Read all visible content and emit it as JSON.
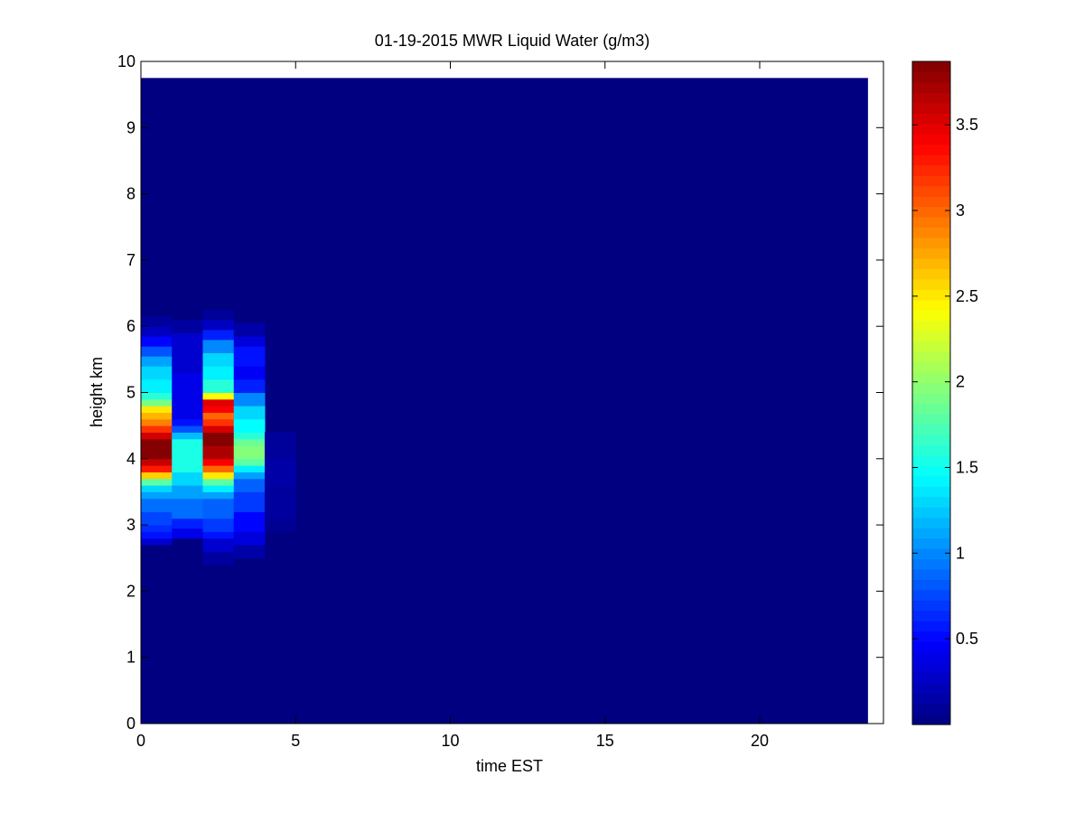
{
  "chart_data": {
    "type": "heatmap",
    "title": "01-19-2015 MWR Liquid Water (g/m3)",
    "xlabel": "time EST",
    "ylabel": "height km",
    "xlim": [
      0,
      24
    ],
    "ylim": [
      0,
      10
    ],
    "xticks": [
      0,
      5,
      10,
      15,
      20
    ],
    "yticks": [
      0,
      1,
      2,
      3,
      4,
      5,
      6,
      7,
      8,
      9,
      10
    ],
    "colorbar": {
      "colormap": "jet",
      "clim": [
        0,
        3.87
      ],
      "ticks": [
        0.5,
        1,
        1.5,
        2,
        2.5,
        3,
        3.5
      ]
    },
    "grid": false,
    "data_extent": {
      "x": [
        0,
        23.5
      ],
      "y": [
        0,
        9.75
      ]
    },
    "background_value": 0,
    "column_width_hours": 1,
    "columns": [
      {
        "x": 0,
        "cells": [
          [
            2.7,
            2.8,
            0.3
          ],
          [
            2.8,
            2.9,
            0.55
          ],
          [
            2.9,
            3.0,
            0.65
          ],
          [
            3.0,
            3.2,
            0.75
          ],
          [
            3.2,
            3.4,
            0.9
          ],
          [
            3.4,
            3.5,
            1.1
          ],
          [
            3.5,
            3.6,
            1.3
          ],
          [
            3.6,
            3.7,
            1.8
          ],
          [
            3.7,
            3.8,
            2.6
          ],
          [
            3.8,
            3.9,
            3.3
          ],
          [
            3.9,
            4.0,
            3.6
          ],
          [
            4.0,
            4.3,
            3.85
          ],
          [
            4.3,
            4.4,
            3.55
          ],
          [
            4.4,
            4.5,
            3.2
          ],
          [
            4.5,
            4.6,
            2.9
          ],
          [
            4.6,
            4.7,
            2.7
          ],
          [
            4.7,
            4.8,
            2.5
          ],
          [
            4.8,
            4.9,
            1.9
          ],
          [
            4.9,
            5.0,
            1.6
          ],
          [
            5.0,
            5.2,
            1.4
          ],
          [
            5.2,
            5.4,
            1.3
          ],
          [
            5.4,
            5.55,
            1.1
          ],
          [
            5.55,
            5.7,
            0.8
          ],
          [
            5.7,
            5.85,
            0.5
          ],
          [
            5.85,
            6.0,
            0.25
          ],
          [
            6.0,
            6.15,
            0.1
          ]
        ]
      },
      {
        "x": 1,
        "cells": [
          [
            2.8,
            2.95,
            0.4
          ],
          [
            2.95,
            3.1,
            0.6
          ],
          [
            3.1,
            3.4,
            0.9
          ],
          [
            3.4,
            3.6,
            1.1
          ],
          [
            3.6,
            3.8,
            1.3
          ],
          [
            3.8,
            4.3,
            1.55
          ],
          [
            4.3,
            4.4,
            1.2
          ],
          [
            4.4,
            4.5,
            0.8
          ],
          [
            4.5,
            4.6,
            0.55
          ],
          [
            4.6,
            5.3,
            0.4
          ],
          [
            5.3,
            5.9,
            0.3
          ],
          [
            5.9,
            6.1,
            0.12
          ]
        ]
      },
      {
        "x": 2,
        "cells": [
          [
            2.4,
            2.6,
            0.12
          ],
          [
            2.6,
            2.8,
            0.3
          ],
          [
            2.8,
            2.9,
            0.55
          ],
          [
            2.9,
            3.1,
            0.7
          ],
          [
            3.1,
            3.4,
            0.85
          ],
          [
            3.4,
            3.5,
            1.1
          ],
          [
            3.5,
            3.6,
            1.4
          ],
          [
            3.6,
            3.7,
            1.8
          ],
          [
            3.7,
            3.8,
            2.5
          ],
          [
            3.8,
            3.9,
            3.0
          ],
          [
            3.9,
            4.0,
            3.4
          ],
          [
            4.0,
            4.2,
            3.7
          ],
          [
            4.2,
            4.4,
            3.85
          ],
          [
            4.4,
            4.5,
            3.55
          ],
          [
            4.5,
            4.6,
            3.2
          ],
          [
            4.6,
            4.7,
            3.0
          ],
          [
            4.7,
            4.8,
            3.4
          ],
          [
            4.8,
            4.9,
            3.5
          ],
          [
            4.9,
            5.0,
            2.4
          ],
          [
            5.0,
            5.2,
            1.6
          ],
          [
            5.2,
            5.4,
            1.4
          ],
          [
            5.4,
            5.6,
            1.3
          ],
          [
            5.6,
            5.8,
            1.0
          ],
          [
            5.8,
            5.95,
            0.6
          ],
          [
            5.95,
            6.1,
            0.25
          ],
          [
            6.1,
            6.25,
            0.1
          ]
        ]
      },
      {
        "x": 3,
        "cells": [
          [
            2.5,
            2.7,
            0.15
          ],
          [
            2.7,
            2.9,
            0.35
          ],
          [
            2.9,
            3.2,
            0.5
          ],
          [
            3.2,
            3.5,
            0.7
          ],
          [
            3.5,
            3.7,
            0.85
          ],
          [
            3.7,
            3.8,
            1.1
          ],
          [
            3.8,
            3.9,
            1.4
          ],
          [
            3.9,
            4.0,
            1.8
          ],
          [
            4.0,
            4.2,
            1.95
          ],
          [
            4.2,
            4.3,
            1.85
          ],
          [
            4.3,
            4.4,
            1.6
          ],
          [
            4.4,
            4.6,
            1.45
          ],
          [
            4.6,
            4.8,
            1.3
          ],
          [
            4.8,
            5.0,
            1.0
          ],
          [
            5.0,
            5.2,
            0.6
          ],
          [
            5.2,
            5.4,
            0.45
          ],
          [
            5.4,
            5.7,
            0.55
          ],
          [
            5.7,
            5.85,
            0.35
          ],
          [
            5.85,
            6.05,
            0.15
          ]
        ]
      },
      {
        "x": 4,
        "cells": [
          [
            2.9,
            3.1,
            0.07
          ],
          [
            3.1,
            3.6,
            0.12
          ],
          [
            3.6,
            4.0,
            0.15
          ],
          [
            4.0,
            4.4,
            0.1
          ]
        ]
      }
    ]
  }
}
